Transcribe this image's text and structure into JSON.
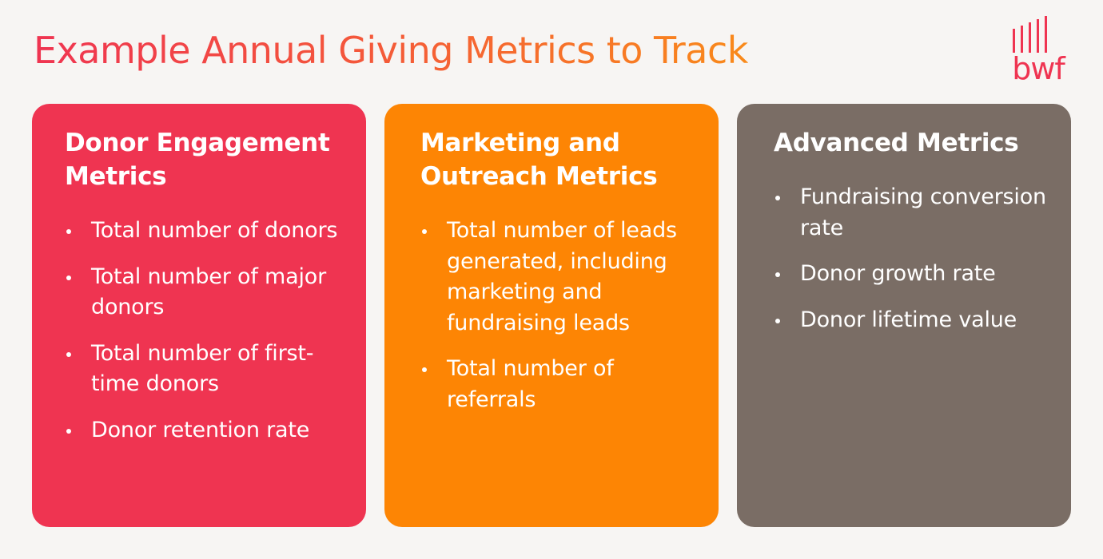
{
  "header": {
    "title": "Example Annual Giving Metrics to Track"
  },
  "logo": {
    "text": "bwf",
    "color": "#ef3451"
  },
  "cards": [
    {
      "title": "Donor Engagement Metrics",
      "color": "#ef3451",
      "items": [
        "Total number of donors",
        "Total number of major donors",
        "Total number of first-time donors",
        "Donor retention rate"
      ]
    },
    {
      "title": "Marketing and Outreach Metrics",
      "color": "#fd8504",
      "items": [
        "Total number of leads generated, including marketing and fundraising leads",
        "Total number of referrals"
      ]
    },
    {
      "title": "Advanced Metrics",
      "color": "#7a6d65",
      "items": [
        "Fundraising conversion rate",
        "Donor growth rate",
        "Donor lifetime value"
      ]
    }
  ]
}
